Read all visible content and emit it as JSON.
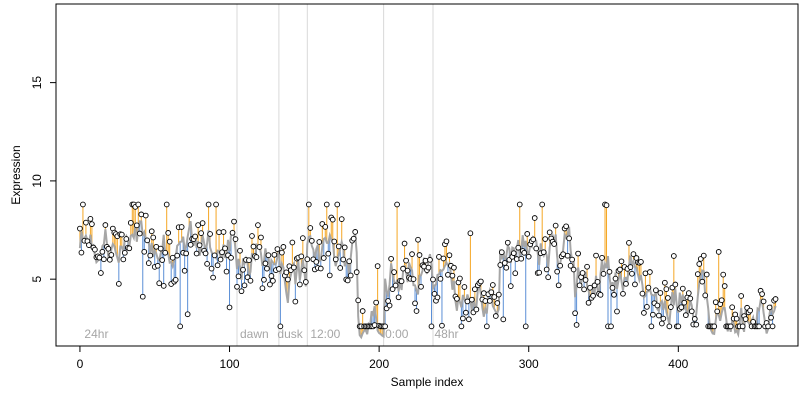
{
  "chart_data": {
    "type": "scatter",
    "xlabel": "Sample index",
    "ylabel": "Expression",
    "xlim": [
      -16,
      480
    ],
    "ylim": [
      1.6,
      19.0
    ],
    "xticks": [
      0,
      100,
      200,
      300,
      400
    ],
    "yticks": [
      5,
      10,
      15
    ],
    "grid": false,
    "vlines": [
      105,
      133,
      152,
      203,
      236
    ],
    "annotations": [
      {
        "x": 3,
        "text": "24hr"
      },
      {
        "x": 107,
        "text": "dawn"
      },
      {
        "x": 132,
        "text": "dusk"
      },
      {
        "x": 154,
        "text": "12:00"
      },
      {
        "x": 204,
        "text": "0:00"
      },
      {
        "x": 237,
        "text": "48hr"
      }
    ],
    "colors": {
      "fit_line": "#a6a6a6",
      "above_segment": "#f5a623",
      "below_segment": "#5b8fd6",
      "point_fill": "#ffffff",
      "point_stroke": "#000000",
      "vline": "#d9d9d9",
      "annotation": "#a6a6a6"
    },
    "segments": [
      {
        "x0": 0,
        "x1": 20,
        "level": 7.0
      },
      {
        "x0": 21,
        "x1": 60,
        "level": 6.6
      },
      {
        "x0": 61,
        "x1": 103,
        "level": 6.6
      },
      {
        "x0": 104,
        "x1": 133,
        "level": 5.9
      },
      {
        "x0": 134,
        "x1": 151,
        "level": 5.0
      },
      {
        "x0": 152,
        "x1": 170,
        "level": 6.4
      },
      {
        "x0": 171,
        "x1": 185,
        "level": 6.0
      },
      {
        "x0": 186,
        "x1": 203,
        "level": 2.6
      },
      {
        "x0": 204,
        "x1": 235,
        "level": 5.4
      },
      {
        "x0": 236,
        "x1": 280,
        "level": 4.4
      },
      {
        "x0": 281,
        "x1": 330,
        "level": 6.5
      },
      {
        "x0": 331,
        "x1": 375,
        "level": 5.2
      },
      {
        "x0": 376,
        "x1": 420,
        "level": 4.0
      },
      {
        "x0": 421,
        "x1": 465,
        "level": 3.2
      }
    ],
    "seed": 7
  }
}
